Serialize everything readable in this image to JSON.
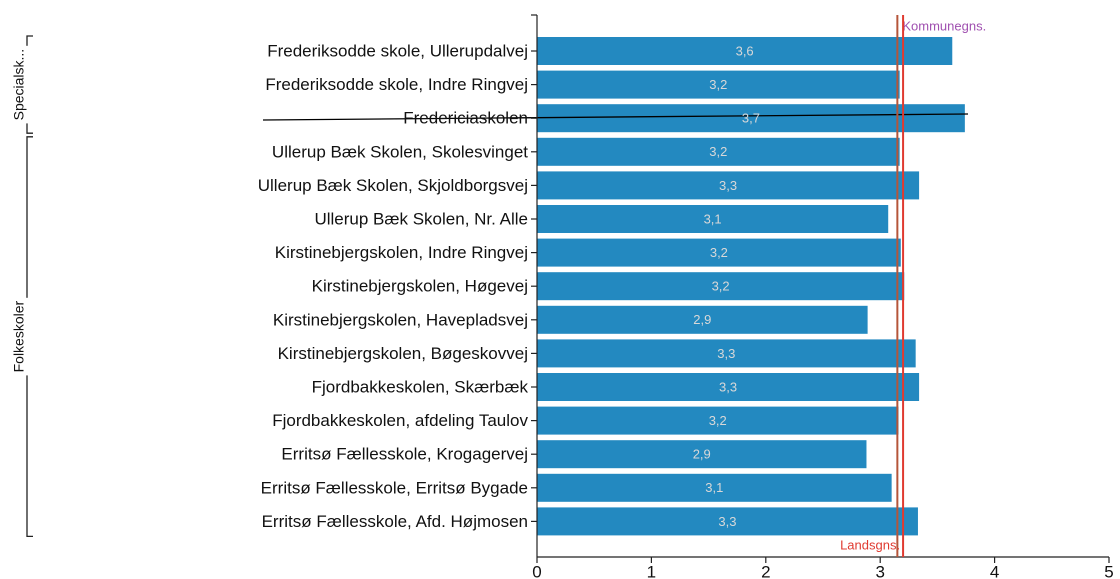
{
  "chart_data": {
    "type": "bar",
    "orientation": "horizontal",
    "categories": [
      "Frederiksodde skole, Ullerupdalvej",
      "Frederiksodde skole, Indre Ringvej",
      "Fredericiaskolen",
      "Ullerup Bæk Skolen, Skolesvinget",
      "Ullerup Bæk Skolen, Skjoldborgsvej",
      "Ullerup Bæk Skolen, Nr. Alle",
      "Kirstinebjergskolen, Indre Ringvej",
      "Kirstinebjergskolen, Høgevej",
      "Kirstinebjergskolen, Havepladsvej",
      "Kirstinebjergskolen, Bøgeskovvej",
      "Fjordbakkeskolen, Skærbæk",
      "Fjordbakkeskolen, afdeling Taulov",
      "Erritsø Fællesskole, Krogagervej",
      "Erritsø Fællesskole, Erritsø Bygade",
      "Erritsø Fællesskole, Afd. Højmosen"
    ],
    "values": [
      3.63,
      3.17,
      3.74,
      3.17,
      3.34,
      3.07,
      3.18,
      3.21,
      2.89,
      3.31,
      3.34,
      3.16,
      2.88,
      3.1,
      3.33
    ],
    "value_labels": [
      "3,6",
      "3,2",
      "3,7",
      "3,2",
      "3,3",
      "3,1",
      "3,2",
      "3,2",
      "2,9",
      "3,3",
      "3,3",
      "3,2",
      "2,9",
      "3,1",
      "3,3"
    ],
    "color": "#2389c0",
    "xlim": [
      0,
      5
    ],
    "xticks": [
      0,
      1,
      2,
      3,
      4,
      5
    ],
    "reference_lines": [
      {
        "name": "Kommunegns.",
        "value": 3.15,
        "color": "#b5553a",
        "label_color": "#a050b0"
      },
      {
        "name": "Landsgns.",
        "value": 3.2,
        "color": "#e03a30",
        "label_color": "#e03a30"
      }
    ],
    "groups": [
      {
        "label": "Specialsk...",
        "count": 3
      },
      {
        "label": "Folkeskoler",
        "count": 12
      }
    ]
  }
}
